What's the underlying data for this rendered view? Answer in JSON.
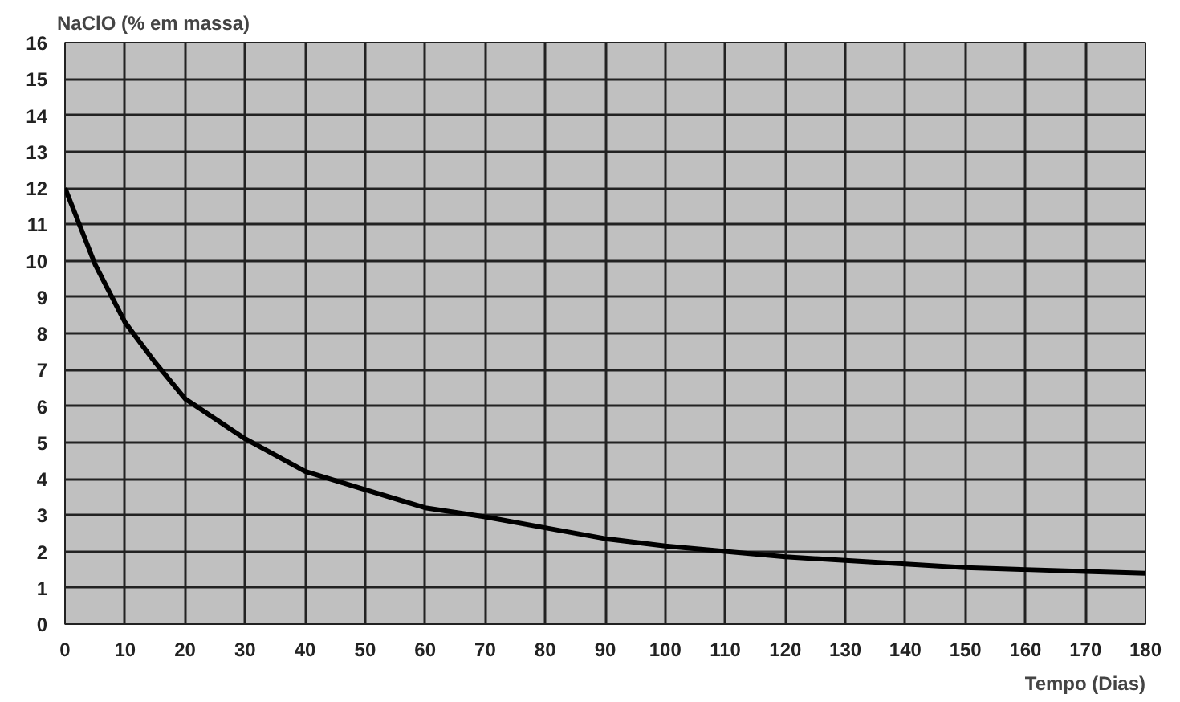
{
  "chart_data": {
    "type": "line",
    "ylabel": "NaClO (% em massa)",
    "xlabel": "Tempo (Dias)",
    "x": [
      0,
      5,
      10,
      15,
      20,
      30,
      40,
      50,
      60,
      70,
      80,
      90,
      100,
      110,
      120,
      130,
      140,
      150,
      160,
      170,
      180
    ],
    "series": [
      {
        "color": "#000000",
        "values": [
          12,
          9.9,
          8.3,
          7.2,
          6.2,
          5.1,
          4.2,
          3.7,
          3.2,
          2.95,
          2.65,
          2.35,
          2.15,
          2.0,
          1.85,
          1.75,
          1.65,
          1.55,
          1.5,
          1.45,
          1.4
        ]
      }
    ],
    "xlim": [
      0,
      180
    ],
    "ylim": [
      0,
      16
    ],
    "xticks": [
      0,
      10,
      20,
      30,
      40,
      50,
      60,
      70,
      80,
      90,
      100,
      110,
      120,
      130,
      140,
      150,
      160,
      170,
      180
    ],
    "yticks": [
      0,
      1,
      2,
      3,
      4,
      5,
      6,
      7,
      8,
      9,
      10,
      11,
      12,
      13,
      14,
      15,
      16
    ],
    "grid": true,
    "marker": "none",
    "line_style": "solid"
  }
}
